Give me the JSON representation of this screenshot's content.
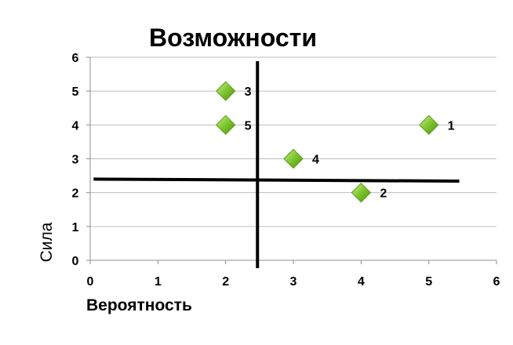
{
  "chart_data": {
    "type": "scatter",
    "title": "Возможности",
    "xlabel": "Вероятность",
    "ylabel": "Сила",
    "xlim": [
      0,
      6
    ],
    "ylim": [
      0,
      6
    ],
    "xticks": [
      0,
      1,
      2,
      3,
      4,
      5,
      6
    ],
    "yticks": [
      0,
      1,
      2,
      3,
      4,
      5,
      6
    ],
    "grid": "horizontal",
    "legend": "none",
    "marker": "diamond",
    "marker_color": "#7dc52e",
    "points": [
      {
        "label": "1",
        "x": 5,
        "y": 4
      },
      {
        "label": "2",
        "x": 4,
        "y": 2
      },
      {
        "label": "3",
        "x": 2,
        "y": 5
      },
      {
        "label": "4",
        "x": 3,
        "y": 3
      },
      {
        "label": "5",
        "x": 2,
        "y": 4
      }
    ],
    "divider_lines": [
      {
        "from": [
          2.47,
          0
        ],
        "to": [
          2.47,
          6.0
        ]
      },
      {
        "from": [
          0.05,
          2.4
        ],
        "to": [
          5.45,
          2.34
        ]
      }
    ]
  }
}
